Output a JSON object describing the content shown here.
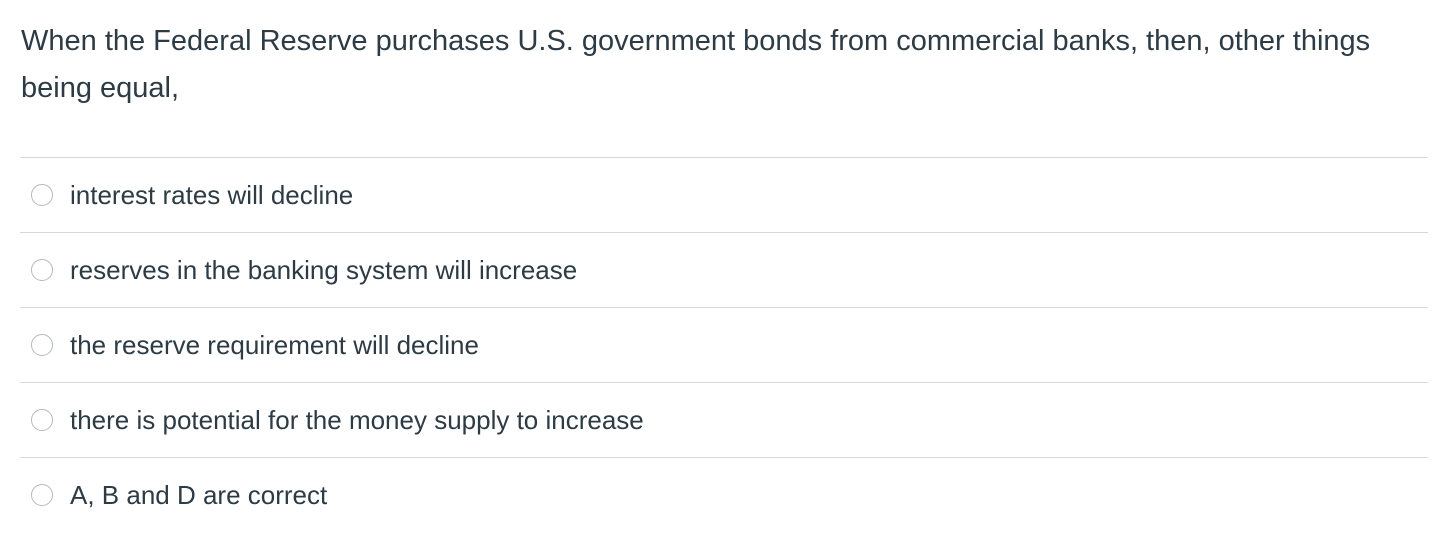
{
  "question": {
    "text": "When the Federal Reserve purchases U.S. government bonds from commercial banks, then, other things being equal,"
  },
  "options": [
    "interest rates will decline",
    "reserves in the banking system will increase",
    "the reserve requirement will decline",
    "there is potential for the money supply to increase",
    "A, B and D are correct"
  ]
}
